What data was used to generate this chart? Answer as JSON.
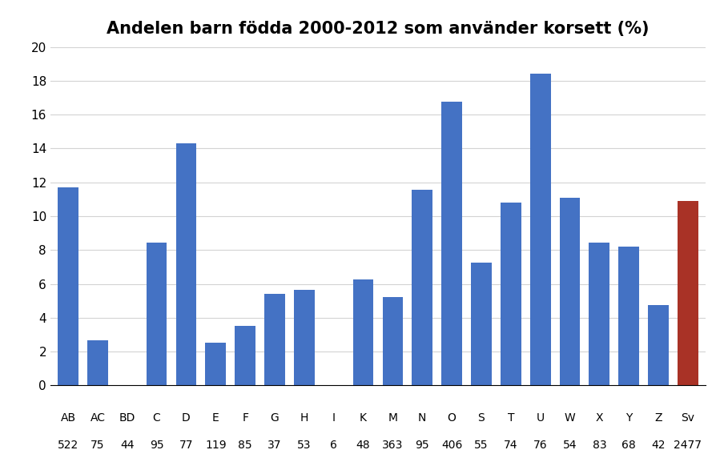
{
  "title": "Andelen barn födda 2000-2012 som använder korsett (%)",
  "categories": [
    "AB",
    "AC",
    "BD",
    "C",
    "D",
    "E",
    "F",
    "G",
    "H",
    "I",
    "K",
    "M",
    "N",
    "O",
    "S",
    "T",
    "U",
    "W",
    "X",
    "Y",
    "Z",
    "Sv"
  ],
  "counts": [
    "522",
    "75",
    "44",
    "95",
    "77",
    "119",
    "85",
    "37",
    "53",
    "6",
    "48",
    "363",
    "95",
    "406",
    "55",
    "74",
    "76",
    "54",
    "83",
    "68",
    "42",
    "2477"
  ],
  "values": [
    11.7,
    2.67,
    0.0,
    8.42,
    14.29,
    2.52,
    3.53,
    5.41,
    5.66,
    0.0,
    6.25,
    5.23,
    11.58,
    16.75,
    7.27,
    10.81,
    18.42,
    11.11,
    8.43,
    8.18,
    4.76,
    10.92
  ],
  "bar_colors": [
    "#4472C4",
    "#4472C4",
    "#4472C4",
    "#4472C4",
    "#4472C4",
    "#4472C4",
    "#4472C4",
    "#4472C4",
    "#4472C4",
    "#4472C4",
    "#4472C4",
    "#4472C4",
    "#4472C4",
    "#4472C4",
    "#4472C4",
    "#4472C4",
    "#4472C4",
    "#4472C4",
    "#4472C4",
    "#4472C4",
    "#4472C4",
    "#A93226"
  ],
  "ylim": [
    0,
    20
  ],
  "yticks": [
    0,
    2,
    4,
    6,
    8,
    10,
    12,
    14,
    16,
    18,
    20
  ],
  "background_color": "#FFFFFF",
  "title_fontsize": 15,
  "label_fontsize": 10,
  "count_fontsize": 10
}
